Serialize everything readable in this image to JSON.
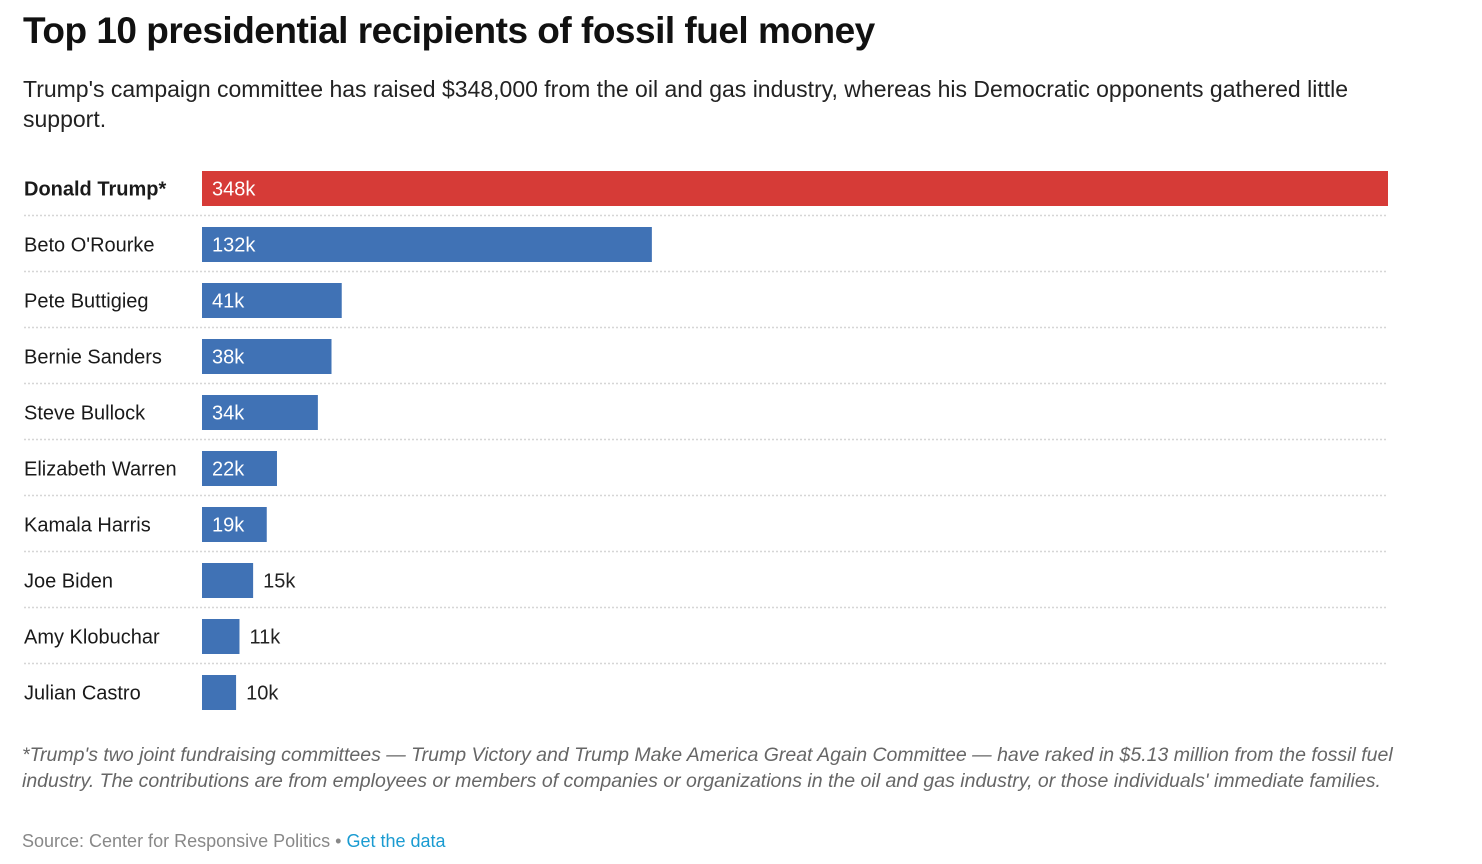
{
  "header": {
    "title": "Top 10 presidential recipients of fossil fuel money",
    "subtitle": "Trump's campaign committee has raised $348,000 from the oil and gas industry, whereas his Democratic opponents gathered little support."
  },
  "chart_data": {
    "type": "bar",
    "orientation": "horizontal",
    "title": "Top 10 presidential recipients of fossil fuel money",
    "xlabel": "",
    "ylabel": "",
    "unit": "USD (thousands)",
    "xlim": [
      0,
      348
    ],
    "grid": false,
    "categories": [
      "Donald Trump*",
      "Beto O'Rourke",
      "Pete Buttigieg",
      "Bernie Sanders",
      "Steve Bullock",
      "Elizabeth Warren",
      "Kamala Harris",
      "Joe Biden",
      "Amy Klobuchar",
      "Julian Castro"
    ],
    "values": [
      348,
      132,
      41,
      38,
      34,
      22,
      19,
      15,
      11,
      10
    ],
    "labels": [
      "348k",
      "132k",
      "41k",
      "38k",
      "34k",
      "22k",
      "19k",
      "15k",
      "11k",
      "10k"
    ],
    "highlight": {
      "category": "Donald Trump*",
      "color": "#d63b37"
    },
    "bar_color": "#4072b5"
  },
  "footer": {
    "notes": "*Trump's two joint fundraising committees — Trump Victory and Trump Make America Great Again Committee — have raked in $5.13 million from the fossil fuel industry. The contributions are from employees or members of companies or organizations in the oil and gas industry, or those individuals' immediate families.",
    "source": "Source: Center for Responsive Politics",
    "separator": " • ",
    "get_data_label": "Get the data"
  }
}
